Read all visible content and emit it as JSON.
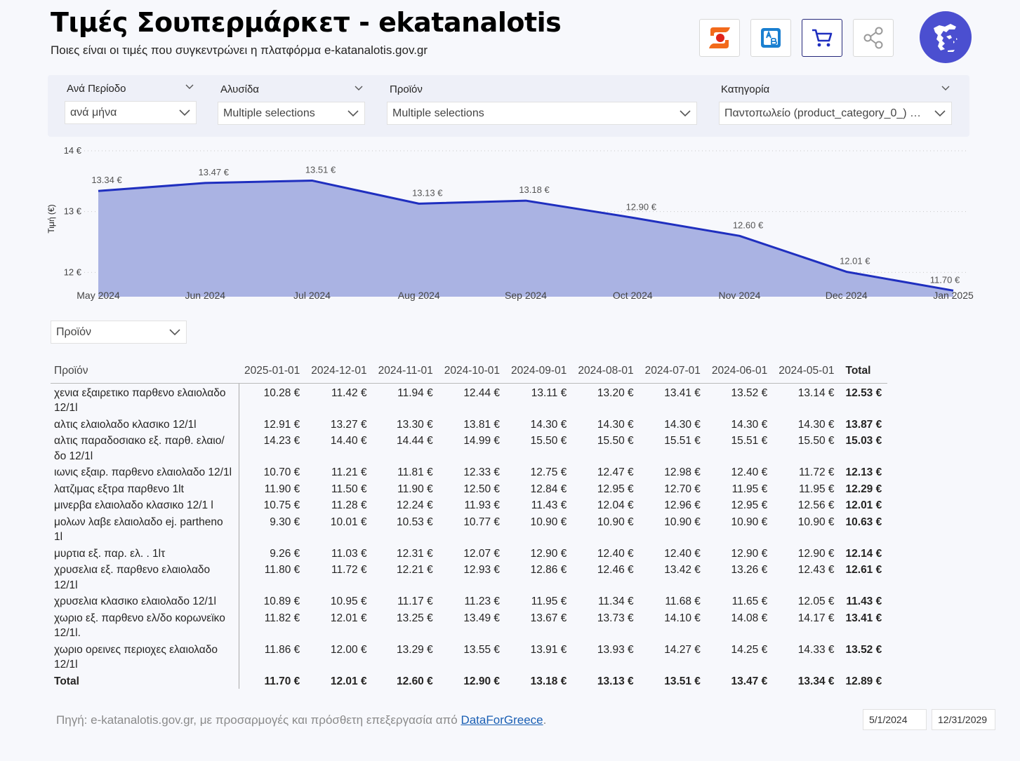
{
  "header": {
    "title": "Τιμές Σουπερμάρκετ - ekatanalotis",
    "subtitle": "Ποιες είναι οι τιμές που συγκεντρώνει η πλατφόρμα e-katanalotis.gov.gr"
  },
  "toolbar": {
    "buttons": [
      {
        "icon": "sklavenitis-logo-icon"
      },
      {
        "icon": "ab-logo-icon"
      },
      {
        "icon": "cart-icon"
      },
      {
        "icon": "share-icon"
      }
    ],
    "map_icon": "greece-map-icon"
  },
  "filters": {
    "period": {
      "label": "Ανά Περίοδο",
      "value": "ανά μήνα"
    },
    "chain": {
      "label": "Αλυσίδα",
      "value": "Multiple selections"
    },
    "product": {
      "label": "Προϊόν",
      "value": "Multiple selections"
    },
    "category": {
      "label": "Κατηγορία",
      "value": "Παντοπωλείο (product_category_0_) + ..."
    }
  },
  "chart_data": {
    "type": "area",
    "x": [
      "May 2024",
      "Jun 2024",
      "Jul 2024",
      "Aug 2024",
      "Sep 2024",
      "Oct 2024",
      "Nov 2024",
      "Dec 2024",
      "Jan 2025"
    ],
    "values": [
      13.34,
      13.47,
      13.51,
      13.13,
      13.18,
      12.9,
      12.6,
      12.01,
      11.7
    ],
    "data_labels": [
      "13.34 €",
      "13.47 €",
      "13.51 €",
      "13.13 €",
      "13.18 €",
      "12.90 €",
      "12.60 €",
      "12.01 €",
      "11.70 €"
    ],
    "ylabel": "Τιμή (€)",
    "yticks": [
      "14 €",
      "13 €",
      "12 €"
    ],
    "ytick_values": [
      14,
      13,
      12
    ],
    "ylim": [
      11.6,
      14
    ],
    "grid": true,
    "line_color": "#1f2fbf",
    "fill_color": "#aab3e3"
  },
  "table": {
    "slicer_value": "Προϊόν",
    "headers": [
      "Προϊόν",
      "2025-01-01",
      "2024-12-01",
      "2024-11-01",
      "2024-10-01",
      "2024-09-01",
      "2024-08-01",
      "2024-07-01",
      "2024-06-01",
      "2024-05-01",
      "Total"
    ],
    "rows": [
      [
        "χενια εξαιρετικο παρθενο ελαιολαδο 12/1l",
        "10.28 €",
        "11.42 €",
        "11.94 €",
        "12.44 €",
        "13.11 €",
        "13.20 €",
        "13.41 €",
        "13.52 €",
        "13.14 €",
        "12.53 €"
      ],
      [
        "αλτις ελαιολαδο κλασικο 12/1l",
        "12.91 €",
        "13.27 €",
        "13.30 €",
        "13.81 €",
        "14.30 €",
        "14.30 €",
        "14.30 €",
        "14.30 €",
        "14.30 €",
        "13.87 €"
      ],
      [
        "αλτις παραδοσιακο εξ. παρθ. ελαιο/δο 12/1l",
        "14.23 €",
        "14.40 €",
        "14.44 €",
        "14.99 €",
        "15.50 €",
        "15.50 €",
        "15.51 €",
        "15.51 €",
        "15.50 €",
        "15.03 €"
      ],
      [
        "ιωνις εξαιρ. παρθενο ελαιολαδο 12/1l",
        "10.70 €",
        "11.21 €",
        "11.81 €",
        "12.33 €",
        "12.75 €",
        "12.47 €",
        "12.98 €",
        "12.40 €",
        "11.72 €",
        "12.13 €"
      ],
      [
        "λατζιμας εξτρα παρθενο 1lt",
        "11.90 €",
        "11.50 €",
        "11.90 €",
        "12.50 €",
        "12.84 €",
        "12.95 €",
        "12.70 €",
        "11.95 €",
        "11.95 €",
        "12.29 €"
      ],
      [
        "μινερβα ελαιολαδο κλασικο 12/1 l",
        "10.75 €",
        "11.28 €",
        "12.24 €",
        "11.93 €",
        "11.43 €",
        "12.04 €",
        "12.96 €",
        "12.95 €",
        "12.56 €",
        "12.01 €"
      ],
      [
        "μολων λαβε ελαιολαδο ej. partheno 1l",
        "9.30 €",
        "10.01 €",
        "10.53 €",
        "10.77 €",
        "10.90 €",
        "10.90 €",
        "10.90 €",
        "10.90 €",
        "10.90 €",
        "10.63 €"
      ],
      [
        "μυρτια εξ. παρ. ελ. . 1lτ",
        "9.26 €",
        "11.03 €",
        "12.31 €",
        "12.07 €",
        "12.90 €",
        "12.40 €",
        "12.40 €",
        "12.90 €",
        "12.90 €",
        "12.14 €"
      ],
      [
        "χρυσελια εξ. παρθενο ελαιολαδο 12/1l",
        "11.80 €",
        "11.72 €",
        "12.21 €",
        "12.93 €",
        "12.86 €",
        "12.46 €",
        "13.42 €",
        "13.26 €",
        "12.43 €",
        "12.61 €"
      ],
      [
        "χρυσελια κλασικο ελαιολαδο 12/1l",
        "10.89 €",
        "10.95 €",
        "11.17 €",
        "11.23 €",
        "11.95 €",
        "11.34 €",
        "11.68 €",
        "11.65 €",
        "12.05 €",
        "11.43 €"
      ],
      [
        "χωριο εξ. παρθενο ελ/δο κορωνεϊκο 12/1l.",
        "11.82 €",
        "12.01 €",
        "13.25 €",
        "13.49 €",
        "13.67 €",
        "13.73 €",
        "14.10 €",
        "14.08 €",
        "14.17 €",
        "13.41 €"
      ],
      [
        "χωριο ορεινες περιοχες ελαιολαδο 12/1l",
        "11.86 €",
        "12.00 €",
        "13.29 €",
        "13.55 €",
        "13.91 €",
        "13.93 €",
        "14.27 €",
        "14.25 €",
        "14.33 €",
        "13.52 €"
      ]
    ],
    "total_row": [
      "Total",
      "11.70 €",
      "12.01 €",
      "12.60 €",
      "12.90 €",
      "13.18 €",
      "13.13 €",
      "13.51 €",
      "13.47 €",
      "13.34 €",
      "12.89 €"
    ]
  },
  "footer": {
    "source_text": "Πηγή: e-katanalotis.gov.gr, με προσαρμογές και πρόσθετη επεξεργασία από ",
    "link_text": "DataForGreece",
    "end": ".",
    "date_start": "5/1/2024",
    "date_end": "12/31/2029"
  }
}
